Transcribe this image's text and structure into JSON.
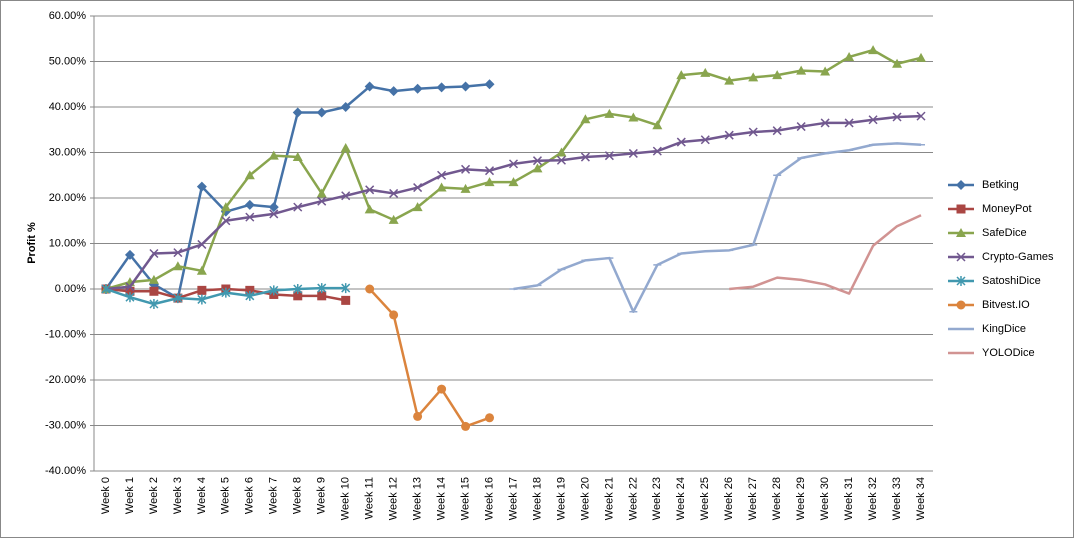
{
  "chart_data": {
    "type": "line",
    "y_label": "Profit %",
    "categories": [
      "Week 0",
      "Week 1",
      "Week 2",
      "Week 3",
      "Week 4",
      "Week 5",
      "Week 6",
      "Week 7",
      "Week 8",
      "Week 9",
      "Week 10",
      "Week 11",
      "Week 12",
      "Week 13",
      "Week 14",
      "Week 15",
      "Week 16",
      "Week 17",
      "Week 18",
      "Week 19",
      "Week 20",
      "Week 21",
      "Week 22",
      "Week 23",
      "Week 24",
      "Week 25",
      "Week 26",
      "Week 27",
      "Week 28",
      "Week 29",
      "Week 30",
      "Week 31",
      "Week 32",
      "Week 33",
      "Week 34"
    ],
    "ylim": [
      -40,
      60
    ],
    "yticks": [
      {
        "value": -40,
        "label": "-40.00%"
      },
      {
        "value": -30,
        "label": "-30.00%"
      },
      {
        "value": -20,
        "label": "-20.00%"
      },
      {
        "value": -10,
        "label": "-10.00%"
      },
      {
        "value": 0,
        "label": "0.00%"
      },
      {
        "value": 10,
        "label": "10.00%"
      },
      {
        "value": 20,
        "label": "20.00%"
      },
      {
        "value": 30,
        "label": "30.00%"
      },
      {
        "value": 40,
        "label": "40.00%"
      },
      {
        "value": 50,
        "label": "50.00%"
      },
      {
        "value": 60,
        "label": "60.00%"
      }
    ],
    "grid": true,
    "legend": "right",
    "series": [
      {
        "name": "Betking",
        "color": "#4572a7",
        "marker": "diamond",
        "values": [
          0,
          7.5,
          1,
          -2,
          22.5,
          17,
          18.5,
          18,
          38.8,
          38.8,
          40,
          44.5,
          43.5,
          44,
          44.3,
          44.5,
          45,
          null,
          null,
          null,
          null,
          null,
          null,
          null,
          null,
          null,
          null,
          null,
          null,
          null,
          null,
          null,
          null,
          null,
          null
        ]
      },
      {
        "name": "MoneyPot",
        "color": "#aa4643",
        "marker": "square",
        "values": [
          0,
          -0.5,
          -0.5,
          -2,
          -0.3,
          0,
          -0.3,
          -1.2,
          -1.5,
          -1.5,
          -2.5,
          null,
          null,
          null,
          null,
          null,
          null,
          null,
          null,
          null,
          null,
          null,
          null,
          null,
          null,
          null,
          null,
          null,
          null,
          null,
          null,
          null,
          null,
          null,
          null
        ]
      },
      {
        "name": "SafeDice",
        "color": "#89a54e",
        "marker": "triangle",
        "values": [
          0,
          1.5,
          2,
          5,
          4,
          18,
          25,
          29.3,
          29,
          21,
          31,
          17.5,
          15.2,
          18,
          22.3,
          22,
          23.5,
          23.5,
          26.5,
          30,
          37.3,
          38.5,
          37.7,
          36,
          47,
          47.5,
          45.8,
          46.5,
          47,
          48,
          47.8,
          51,
          52.5,
          49.5,
          50.8
        ]
      },
      {
        "name": "Crypto-Games",
        "color": "#71588f",
        "marker": "x",
        "values": [
          0,
          0.5,
          7.8,
          8,
          9.8,
          15,
          15.8,
          16.5,
          18,
          19.3,
          20.5,
          21.8,
          21,
          22.3,
          25,
          26.3,
          26,
          27.5,
          28.2,
          28.3,
          29,
          29.3,
          29.8,
          30.3,
          32.3,
          32.8,
          33.8,
          34.5,
          34.8,
          35.7,
          36.5,
          36.5,
          37.2,
          37.8,
          38
        ]
      },
      {
        "name": "SatoshiDice",
        "color": "#4198af",
        "marker": "asterisk",
        "values": [
          0,
          -1.8,
          -3.3,
          -2,
          -2.3,
          -0.8,
          -1.5,
          -0.3,
          0,
          0.2,
          0.2,
          null,
          null,
          null,
          null,
          null,
          null,
          null,
          null,
          null,
          null,
          null,
          null,
          null,
          null,
          null,
          null,
          null,
          null,
          null,
          null,
          null,
          null,
          null,
          null
        ]
      },
      {
        "name": "Bitvest.IO",
        "color": "#db843d",
        "marker": "circle",
        "values": [
          null,
          null,
          null,
          null,
          null,
          null,
          null,
          null,
          null,
          null,
          null,
          0,
          -5.7,
          -28,
          -22,
          -30.2,
          -28.3,
          null,
          null,
          null,
          null,
          null,
          null,
          null,
          null,
          null,
          null,
          null,
          null,
          null,
          null,
          null,
          null,
          null,
          null
        ]
      },
      {
        "name": "KingDice",
        "color": "#93a9cf",
        "marker": "plus",
        "values": [
          null,
          null,
          null,
          null,
          null,
          null,
          null,
          null,
          null,
          null,
          null,
          null,
          null,
          null,
          null,
          null,
          null,
          0,
          0.8,
          4.3,
          6.3,
          6.8,
          -5,
          5.3,
          7.8,
          8.3,
          8.5,
          9.7,
          25,
          28.8,
          29.8,
          30.5,
          31.7,
          32,
          31.7
        ]
      },
      {
        "name": "YOLODice",
        "color": "#d19392",
        "marker": "none",
        "values": [
          null,
          null,
          null,
          null,
          null,
          null,
          null,
          null,
          null,
          null,
          null,
          null,
          null,
          null,
          null,
          null,
          null,
          null,
          null,
          null,
          null,
          null,
          null,
          null,
          null,
          null,
          0,
          0.5,
          2.5,
          2,
          1,
          -1,
          9.5,
          13.8,
          16.2
        ]
      }
    ]
  }
}
